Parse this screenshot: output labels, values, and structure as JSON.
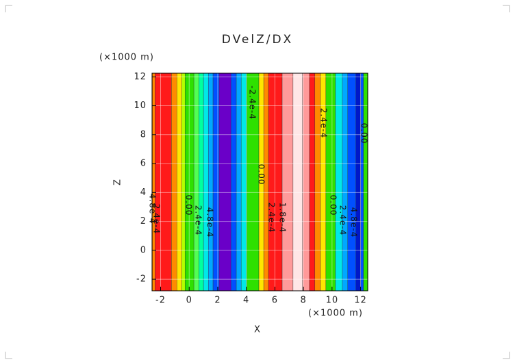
{
  "chart_data": {
    "type": "contour",
    "title": "DVelZ/DX",
    "x_label": "X",
    "y_label": "Z",
    "x_unit": "(×1000 m)",
    "y_unit": "(×1000 m)",
    "xlim": [
      -2.6,
      12.5
    ],
    "ylim": [
      -2.8,
      12.25
    ],
    "xticks": [
      -2,
      0,
      2,
      4,
      6,
      8,
      10,
      12
    ],
    "yticks": [
      -2,
      0,
      2,
      4,
      6,
      8,
      10,
      12
    ],
    "grid": true,
    "band_edges": [
      -2.58,
      -2.39,
      -1.24,
      -0.86,
      -0.53,
      -0.29,
      0.33,
      0.67,
      1.0,
      1.34,
      1.67,
      2.1,
      2.92,
      3.3,
      3.64,
      4.02,
      4.88,
      5.22,
      5.55,
      6.51,
      7.27,
      7.94,
      8.42,
      8.8,
      9.19,
      9.57,
      10.24,
      10.72,
      11.1,
      11.67,
      12.0,
      12.2,
      12.49
    ],
    "band_colors": [
      "#ff8a00",
      "#ff1a1a",
      "#ff8a00",
      "#ffe600",
      "#b4ff00",
      "#2ee000",
      "#52ff52",
      "#00ffa0",
      "#00e8e8",
      "#00a8ff",
      "#0050ff",
      "#6a00c8",
      "#0050ff",
      "#00a8ff",
      "#00e8e8",
      "#2ee000",
      "#ffe600",
      "#ff8a00",
      "#ff1a1a",
      "#ff9a9a",
      "#ffe6e6",
      "#ff9a9a",
      "#ff1a1a",
      "#ff8a00",
      "#ffe600",
      "#2ee000",
      "#00e8e8",
      "#00a8ff",
      "#0050ff",
      "#0018c8",
      "#0050ff",
      "#2ee000"
    ],
    "contour_labels": [
      "-2.4e-4",
      "2.4e-4",
      "0.00",
      "0.00",
      "4.8e-4",
      "0.00",
      "2.4e-4",
      "4.8e-4",
      "1.8e-4",
      "2.4e-4",
      "0.00",
      "2.4e-4",
      "4.8e-4",
      "2.4e-4"
    ]
  }
}
